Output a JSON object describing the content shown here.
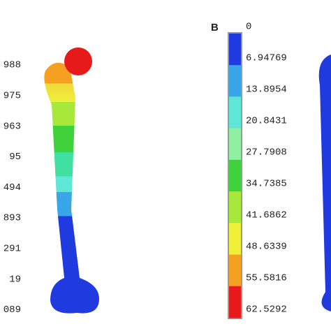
{
  "panel_a": {
    "labels": [
      "988",
      "975",
      "963",
      "95",
      "494",
      "893",
      "291",
      "19",
      "089"
    ]
  },
  "panel_b": {
    "label": "B",
    "colorbar": {
      "labels": [
        "0",
        "6.94769",
        "13.8954",
        "20.8431",
        "27.7908",
        "34.7385",
        "41.6862",
        "48.6339",
        "55.5816",
        "62.5292"
      ],
      "colors": [
        "#1f3be0",
        "#3aa6ea",
        "#5fe6d6",
        "#8ef0a0",
        "#3fd23a",
        "#a8e83a",
        "#f0f03a",
        "#f5a020",
        "#e61a1a"
      ]
    }
  }
}
